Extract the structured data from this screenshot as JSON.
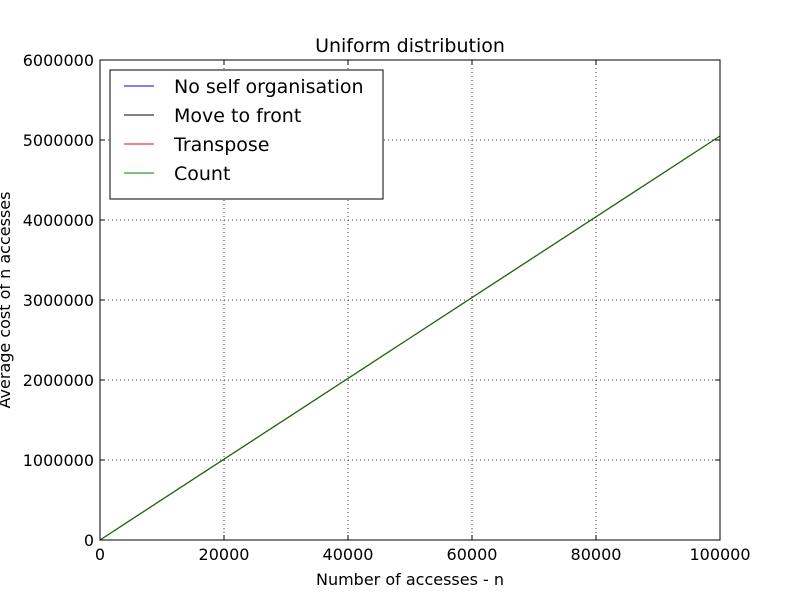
{
  "chart_data": {
    "type": "line",
    "title": "Uniform distribution",
    "xlabel": "Number of accesses - n",
    "ylabel": "Average cost of n accesses",
    "xlim": [
      0,
      100000
    ],
    "ylim": [
      0,
      6000000
    ],
    "xticks": [
      0,
      20000,
      40000,
      60000,
      80000,
      100000
    ],
    "yticks": [
      0,
      1000000,
      2000000,
      3000000,
      4000000,
      5000000,
      6000000
    ],
    "xtick_labels": [
      "0",
      "20000",
      "40000",
      "60000",
      "80000",
      "100000"
    ],
    "ytick_labels": [
      "0",
      "1000000",
      "2000000",
      "3000000",
      "4000000",
      "5000000",
      "6000000"
    ],
    "grid": true,
    "legend_position": "top-left",
    "series": [
      {
        "name": "No self organisation",
        "color": "#0000ff",
        "x": [
          0,
          10000,
          20000,
          30000,
          40000,
          50000,
          60000,
          70000,
          80000,
          90000,
          100000
        ],
        "y": [
          0,
          505000,
          1010000,
          1515000,
          2020000,
          2525000,
          3030000,
          3535000,
          4040000,
          4545000,
          5050000
        ]
      },
      {
        "name": "Move to front",
        "color": "#000000",
        "x": [
          0,
          10000,
          20000,
          30000,
          40000,
          50000,
          60000,
          70000,
          80000,
          90000,
          100000
        ],
        "y": [
          0,
          505000,
          1010000,
          1515000,
          2020000,
          2525000,
          3030000,
          3535000,
          4040000,
          4545000,
          5050000
        ]
      },
      {
        "name": "Transpose",
        "color": "#ff0000",
        "x": [
          0,
          10000,
          20000,
          30000,
          40000,
          50000,
          60000,
          70000,
          80000,
          90000,
          100000
        ],
        "y": [
          0,
          505000,
          1010000,
          1515000,
          2020000,
          2525000,
          3030000,
          3535000,
          4040000,
          4545000,
          5050000
        ]
      },
      {
        "name": "Count",
        "color": "#008000",
        "x": [
          0,
          10000,
          20000,
          30000,
          40000,
          50000,
          60000,
          70000,
          80000,
          90000,
          100000
        ],
        "y": [
          0,
          505000,
          1010000,
          1515000,
          2020000,
          2525000,
          3030000,
          3535000,
          4040000,
          4545000,
          5050000
        ]
      }
    ]
  }
}
